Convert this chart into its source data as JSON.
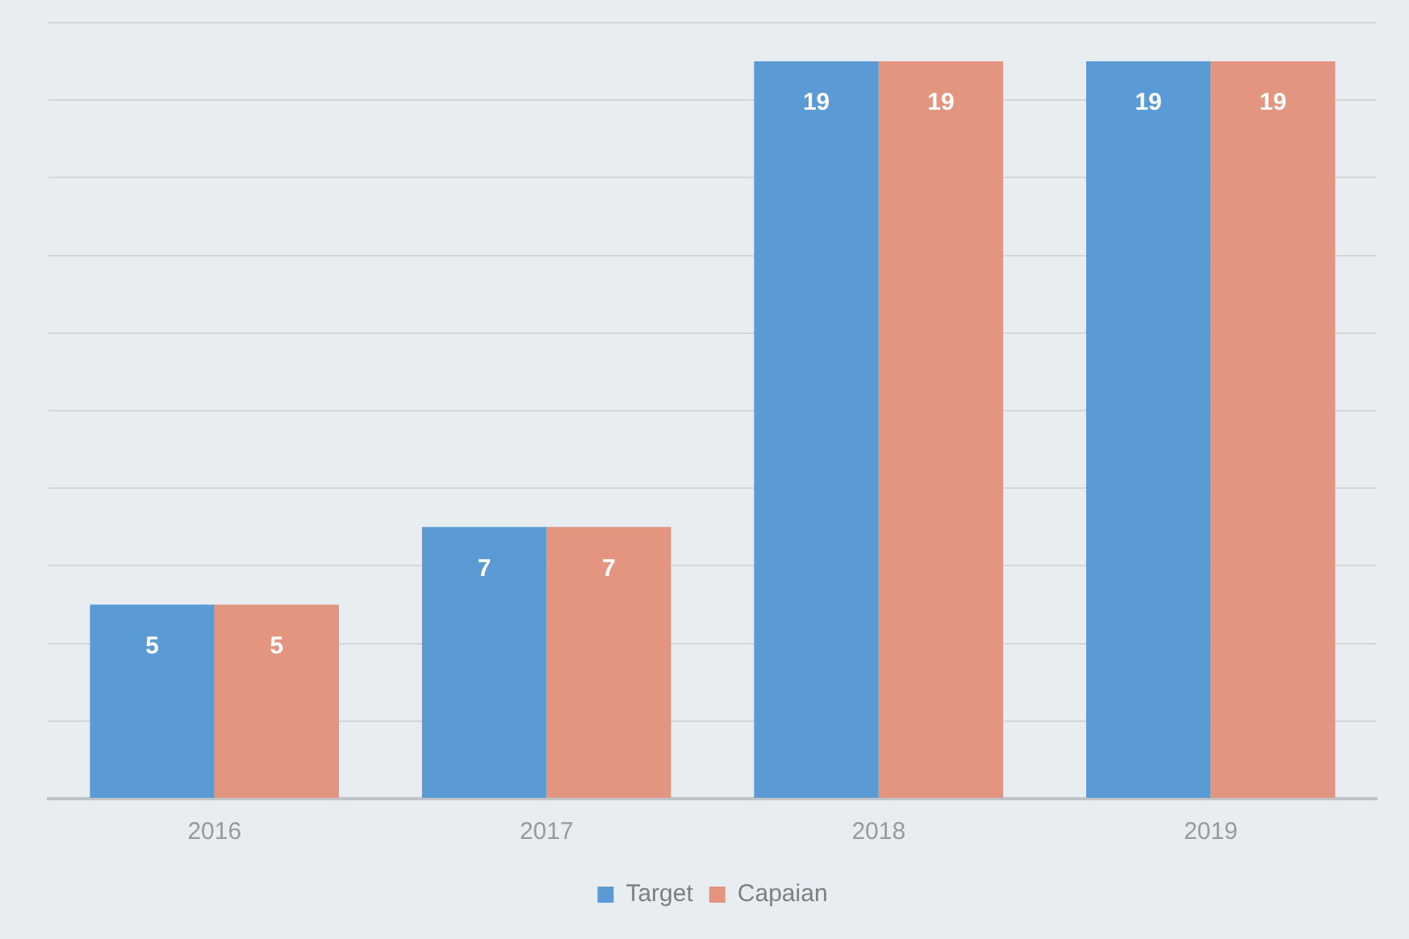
{
  "chart_data": {
    "type": "bar",
    "categories": [
      "2016",
      "2017",
      "2018",
      "2019"
    ],
    "series": [
      {
        "name": "Target",
        "color": "#5b9bd5",
        "values": [
          5,
          7,
          19,
          19
        ]
      },
      {
        "name": "Capaian",
        "color": "#e39580",
        "values": [
          5,
          7,
          19,
          19
        ]
      }
    ],
    "ylim": [
      0,
      20
    ],
    "yticks": [
      {
        "value": 0,
        "label": null
      },
      {
        "value": 2,
        "label": null
      },
      {
        "value": 4,
        "label": null
      },
      {
        "value": 6,
        "label": null
      },
      {
        "value": 8,
        "label": null
      },
      {
        "value": 10,
        "label": null
      },
      {
        "value": 12,
        "label": null
      },
      {
        "value": 14,
        "label": null
      },
      {
        "value": 16,
        "label": null
      },
      {
        "value": 18,
        "label": null
      },
      {
        "value": 20,
        "label": null
      }
    ],
    "tick_labels": "x",
    "grid": "y",
    "legend": "bottom",
    "data_labels": true
  }
}
